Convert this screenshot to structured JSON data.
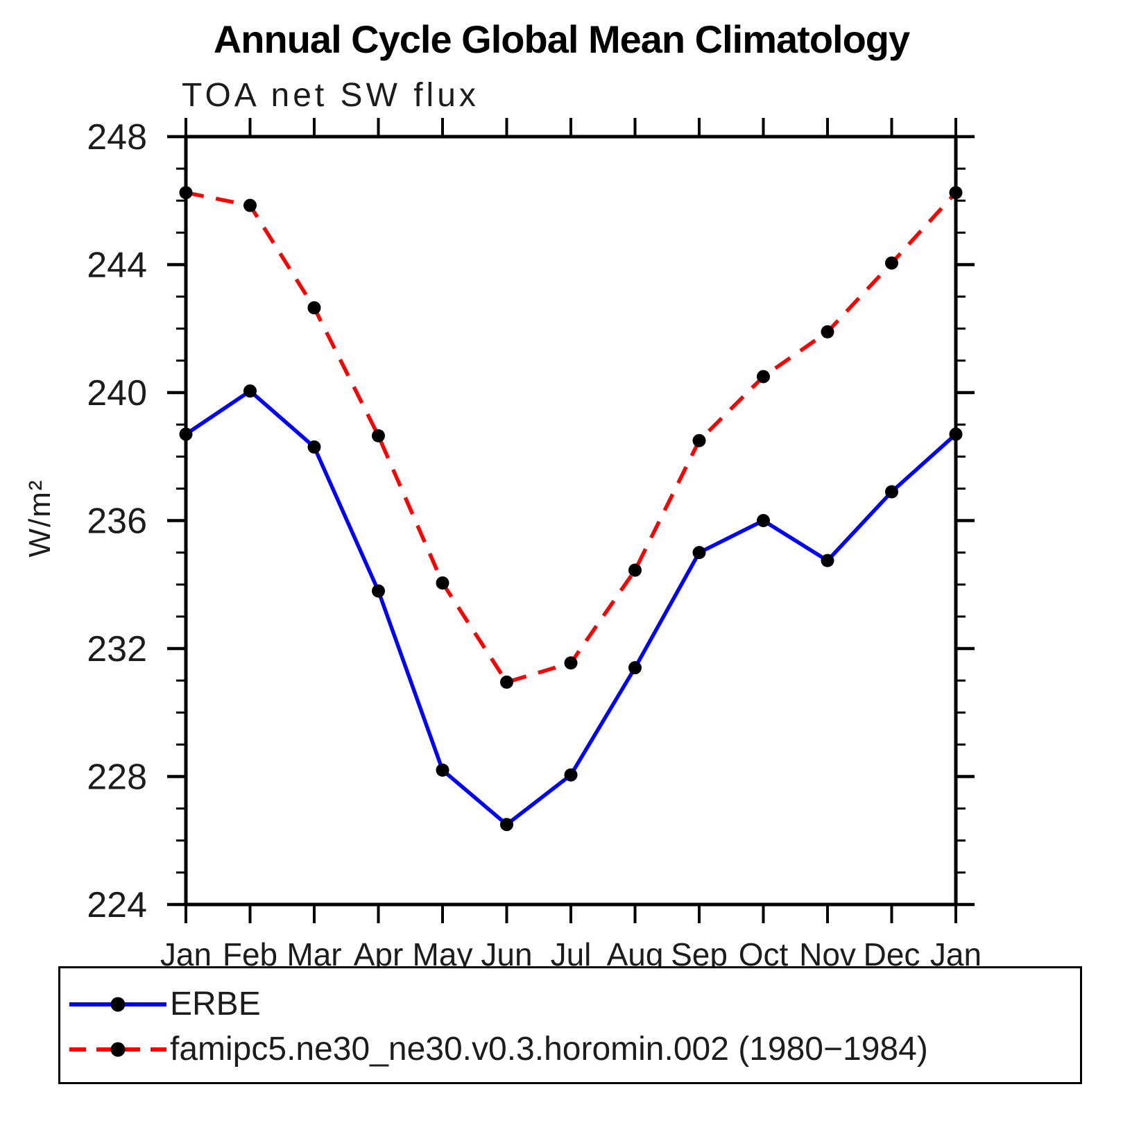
{
  "chart_data": {
    "type": "line",
    "title": "Annual Cycle Global Mean Climatology",
    "subtitle": "TOA net SW flux",
    "ylabel": "W/m²",
    "xlabel": "",
    "categories": [
      "Jan",
      "Feb",
      "Mar",
      "Apr",
      "May",
      "Jun",
      "Jul",
      "Aug",
      "Sep",
      "Oct",
      "Nov",
      "Dec",
      "Jan"
    ],
    "ylim": [
      224,
      248
    ],
    "y_major_step": 4,
    "y_minor_step": 1,
    "y_tick_labels": [
      "224",
      "228",
      "232",
      "236",
      "240",
      "244",
      "248"
    ],
    "grid": "off",
    "legend_position": "bottom",
    "marker": "filled-circle",
    "marker_color": "#000000",
    "axis_color": "#000000",
    "series": [
      {
        "name": "ERBE",
        "color": "#0000ff",
        "line_style": "solid",
        "values": [
          238.7,
          240.05,
          238.3,
          233.8,
          228.2,
          226.5,
          228.05,
          231.4,
          235.0,
          236.0,
          234.75,
          236.9,
          238.7
        ]
      },
      {
        "name": "famipc5.ne30_ne30.v0.3.horomin.002 (1980−1984)",
        "color": "#ff0000",
        "line_style": "dashed",
        "values": [
          246.25,
          245.85,
          242.65,
          238.65,
          234.05,
          230.95,
          231.55,
          234.45,
          238.5,
          240.5,
          241.9,
          244.05,
          246.25
        ]
      }
    ]
  }
}
